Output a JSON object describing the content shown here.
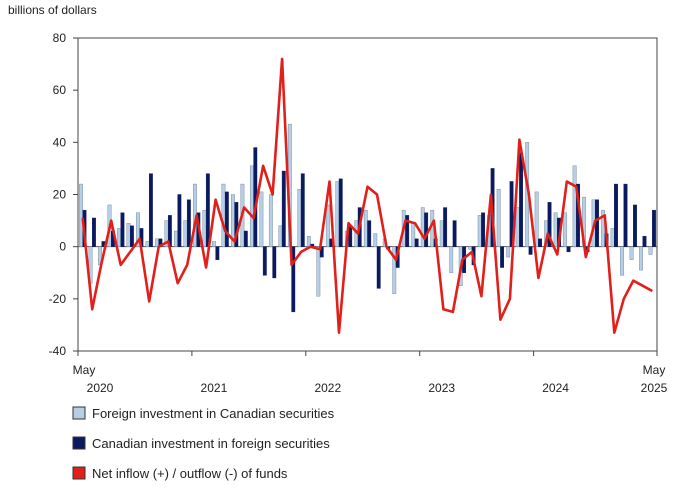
{
  "chart_data": {
    "type": "bar+line",
    "ylabel": "billions of dollars",
    "ylim": [
      -40,
      80
    ],
    "yticks": [
      "80",
      "60",
      "40",
      "20",
      "0",
      "-20",
      "-40"
    ],
    "ytick_values": [
      80,
      60,
      40,
      20,
      0,
      -20,
      -40
    ],
    "start_month": "2020-05",
    "end_month": "2025-05",
    "x_tick_labels": [
      {
        "month": "2020-05",
        "label": "May",
        "sub": "2020"
      },
      {
        "month": "2021-05",
        "label": "",
        "sub": "2021"
      },
      {
        "month": "2022-05",
        "label": "",
        "sub": "2022"
      },
      {
        "month": "2023-05",
        "label": "",
        "sub": "2023"
      },
      {
        "month": "2024-05",
        "label": "",
        "sub": "2024"
      },
      {
        "month": "2025-05",
        "label": "May",
        "sub": "2025"
      }
    ],
    "series": [
      {
        "name": "Foreign investment in Canadian securities",
        "type": "bar",
        "color": "#b7cfe6",
        "values": [
          24,
          -14,
          -7,
          16,
          7,
          9,
          13,
          2,
          3,
          10,
          6,
          10,
          24,
          14,
          2,
          24,
          20,
          24,
          31,
          21,
          20,
          8,
          47,
          22,
          4,
          -19,
          16,
          25,
          6,
          10,
          14,
          5,
          3,
          -18,
          14,
          9,
          15,
          14,
          10,
          -10,
          -15,
          -1,
          12,
          12,
          22,
          -4,
          15,
          40,
          21,
          10,
          13,
          13,
          31,
          19,
          18,
          14,
          7,
          -11,
          -5,
          -9,
          -3
        ]
      },
      {
        "name": "Canadian investment in foreign securities",
        "type": "bar",
        "color": "#0b1a5e",
        "values": [
          14,
          11,
          2,
          6,
          13,
          8,
          7,
          28,
          3,
          12,
          20,
          18,
          13,
          28,
          -5,
          21,
          17,
          6,
          38,
          -11,
          -12,
          29,
          -25,
          28,
          1,
          -4,
          3,
          26,
          8,
          15,
          10,
          -16,
          -1,
          -8,
          12,
          3,
          13,
          3,
          15,
          10,
          -10,
          -7,
          13,
          30,
          -8,
          25,
          36,
          -3,
          3,
          17,
          11,
          -2,
          24,
          -2,
          18,
          5,
          24,
          24,
          16,
          4,
          14
        ]
      },
      {
        "name": "Net inflow (+) / outflow (-) of funds",
        "type": "line",
        "color": "#e0201a",
        "values": [
          11,
          -24,
          -6,
          10,
          -7,
          -2,
          3,
          -21,
          0,
          2,
          -14,
          -7,
          12,
          -8,
          18,
          6,
          2,
          15,
          11,
          31,
          20,
          72,
          -7,
          -2,
          0,
          -1,
          25,
          -33,
          9,
          5,
          23,
          20,
          0,
          -5,
          10,
          9,
          3,
          10,
          -24,
          -25,
          -5,
          -2,
          -19,
          20,
          -28,
          -20,
          41,
          20,
          -12,
          5,
          -3,
          25,
          23,
          -4,
          10,
          12,
          -33,
          -20,
          -13,
          -15,
          -17
        ]
      }
    ],
    "legend": [
      "Foreign investment in Canadian securities",
      "Canadian investment in foreign securities",
      "Net inflow (+) / outflow (-) of funds"
    ],
    "legend_position": "bottom-left",
    "grid": false
  }
}
